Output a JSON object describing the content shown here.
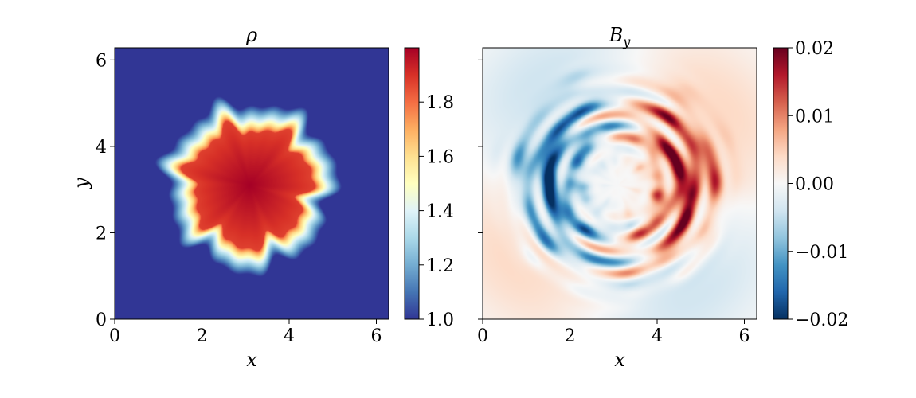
{
  "chart_data": [
    {
      "type": "heatmap",
      "title": "ρ",
      "xlabel": "x",
      "ylabel": "y",
      "xlim": [
        0,
        6.283
      ],
      "ylim": [
        0,
        6.283
      ],
      "xticks": [
        "0",
        "2",
        "4",
        "6"
      ],
      "yticks": [
        "0",
        "2",
        "4",
        "6"
      ],
      "xtick_values": [
        0,
        2,
        4,
        6
      ],
      "ytick_values": [
        0,
        2,
        4,
        6
      ],
      "colormap": "RdYlBu_r",
      "colorbar": {
        "range": [
          1.0,
          2.0
        ],
        "ticks": [
          "1.0",
          "1.2",
          "1.4",
          "1.6",
          "1.8"
        ],
        "tick_values": [
          1.0,
          1.2,
          1.4,
          1.6,
          1.8
        ]
      },
      "field": {
        "description_values": "dense blob centered near (3.1, 3.1) of radius ~1.6 with turbulent edge",
        "center": [
          3.1,
          3.1
        ],
        "radius": 1.6,
        "inside_value": 2.0,
        "outside_value": 1.0
      }
    },
    {
      "type": "heatmap",
      "title": "B_y",
      "xlabel": "x",
      "ylabel": "",
      "xlim": [
        0,
        6.283
      ],
      "ylim": [
        0,
        6.283
      ],
      "xticks": [
        "0",
        "2",
        "4",
        "6"
      ],
      "xtick_values": [
        0,
        2,
        4,
        6
      ],
      "ytick_values": [
        0,
        2,
        4,
        6
      ],
      "colormap": "RdBu_r",
      "colorbar": {
        "range": [
          -0.02,
          0.02
        ],
        "ticks": [
          "0.02",
          "0.01",
          "0.00",
          "−0.01",
          "−0.02"
        ],
        "tick_values": [
          0.02,
          0.01,
          0.0,
          -0.01,
          -0.02
        ]
      },
      "field": {
        "center": [
          3.1,
          3.1
        ],
        "ring_radius": 1.6,
        "min": -0.02,
        "max": 0.02
      }
    }
  ]
}
